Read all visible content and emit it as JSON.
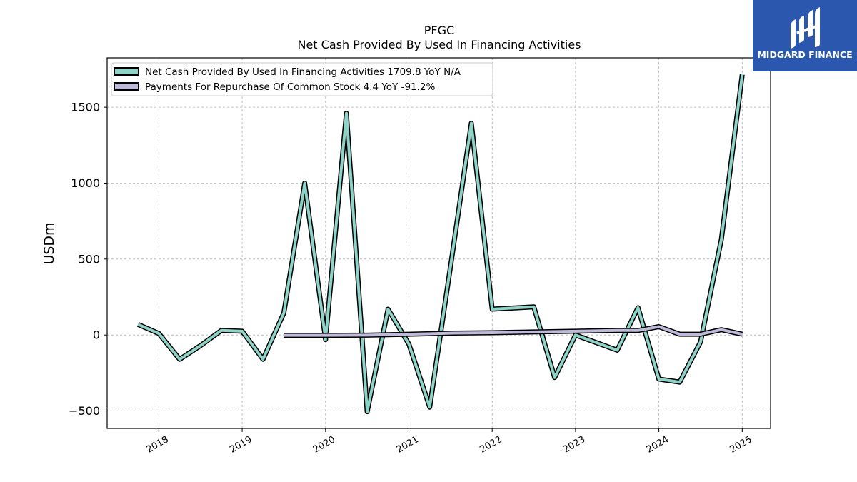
{
  "logo": {
    "text": "MIDGARD FINANCE",
    "bg": "#2b58ae"
  },
  "chart_data": {
    "type": "line",
    "title": "PFGC",
    "subtitle": "Net Cash Provided By Used In Financing Activities",
    "xlabel": "",
    "ylabel": "USDm",
    "xlim": [
      2017.38,
      2025.34
    ],
    "ylim": [
      -615,
      1825
    ],
    "yticks": [
      -500,
      0,
      500,
      1000,
      1500
    ],
    "ytick_labels": [
      "−500",
      "0",
      "500",
      "1000",
      "1500"
    ],
    "xticks": [
      2018,
      2019,
      2020,
      2021,
      2022,
      2023,
      2024,
      2025
    ],
    "xtick_labels": [
      "2018",
      "2019",
      "2020",
      "2021",
      "2022",
      "2023",
      "2024",
      "2025"
    ],
    "grid": true,
    "legend_position": "top-left",
    "series": [
      {
        "name": "Net Cash Provided By Used In Financing Activities",
        "legend_label": "Net Cash Provided By Used In Financing Activities  1709.8 YoY N/A",
        "color": "#8dd3c7",
        "x": [
          2017.75,
          2018.0,
          2018.25,
          2018.5,
          2018.75,
          2019.0,
          2019.25,
          2019.5,
          2019.75,
          2020.0,
          2020.25,
          2020.5,
          2020.75,
          2021.0,
          2021.25,
          2021.5,
          2021.75,
          2022.0,
          2022.5,
          2022.75,
          2023.0,
          2023.5,
          2023.75,
          2024.0,
          2024.25,
          2024.5,
          2024.75,
          2025.0
        ],
        "y": [
          70,
          10,
          -160,
          -70,
          30,
          25,
          -160,
          145,
          1000,
          -30,
          1460,
          -505,
          170,
          -60,
          -475,
          450,
          1395,
          170,
          185,
          -280,
          0,
          -100,
          180,
          -290,
          -310,
          -45,
          630,
          1715
        ]
      },
      {
        "name": "Payments For Repurchase Of Common Stock",
        "legend_label": "Payments For Repurchase Of Common Stock  4.4 YoY -91.2%",
        "color": "#bebada",
        "x": [
          2019.5,
          2020.0,
          2020.5,
          2021.0,
          2021.5,
          2022.0,
          2022.5,
          2023.0,
          2023.5,
          2023.75,
          2024.0,
          2024.25,
          2024.5,
          2024.75,
          2025.0
        ],
        "y": [
          -2,
          -2,
          -1,
          5,
          12,
          15,
          20,
          25,
          30,
          30,
          55,
          5,
          5,
          35,
          5
        ]
      }
    ]
  }
}
